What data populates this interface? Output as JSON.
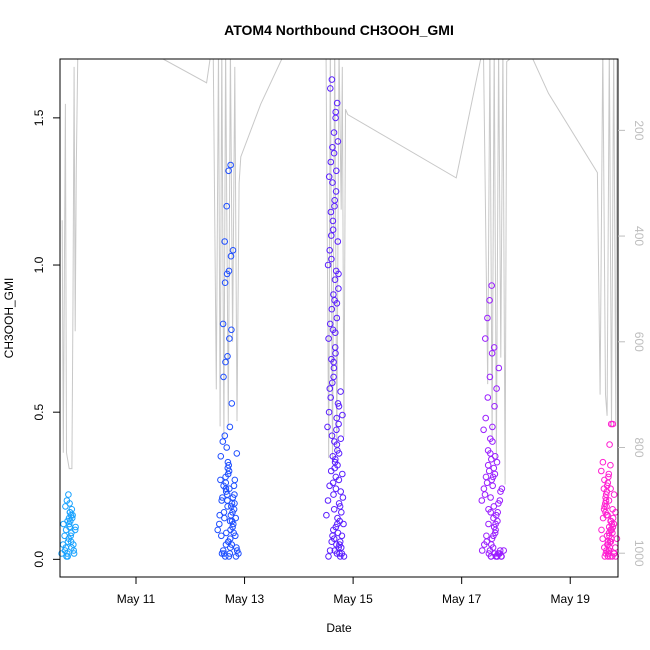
{
  "chart_data": {
    "type": "scatter",
    "title": "ATOM4 Northbound CH3OOH_GMI",
    "xlabel": "Date",
    "ylabel": "CH3OOH_GMI",
    "x_range_days": [
      9.6,
      19.88
    ],
    "ylim": [
      -0.06,
      1.7
    ],
    "x_ticks": [
      {
        "day": 11,
        "label": "May 11"
      },
      {
        "day": 13,
        "label": "May 13"
      },
      {
        "day": 15,
        "label": "May 15"
      },
      {
        "day": 17,
        "label": "May 17"
      },
      {
        "day": 19,
        "label": "May 19"
      }
    ],
    "y_ticks": [
      {
        "value": 0.0,
        "label": "0.0"
      },
      {
        "value": 0.5,
        "label": "0.5"
      },
      {
        "value": 1.0,
        "label": "1.0"
      },
      {
        "value": 1.5,
        "label": "1.5"
      }
    ],
    "right_axis": {
      "range": [
        1045,
        65
      ],
      "reversed": true,
      "ticks": [
        {
          "value": 200,
          "label": "200"
        },
        {
          "value": 400,
          "label": "400"
        },
        {
          "value": 600,
          "label": "600"
        },
        {
          "value": 800,
          "label": "800"
        },
        {
          "value": 1000,
          "label": "1000"
        }
      ],
      "color": "#bdbdbd"
    },
    "grid": false,
    "point_style": "open circles",
    "series": [
      {
        "color": "#1aa3ff",
        "x_range": [
          9.63,
          9.92
        ],
        "y_points": [
          0.02,
          0.05,
          0.08,
          0.1,
          0.13,
          0.14,
          0.12,
          0.03,
          0.01,
          0.06,
          0.11,
          0.15,
          0.18,
          0.2,
          0.22,
          0.16,
          0.09,
          0.04,
          0.02,
          0.07,
          0.13,
          0.17,
          0.05,
          0.01,
          0.12,
          0.08,
          0.14,
          0.03,
          0.1,
          0.19,
          0.06,
          0.15,
          0.02,
          0.11,
          0.16,
          0.04
        ]
      },
      {
        "color": "#1f4fff",
        "x_range": [
          12.5,
          12.92
        ],
        "y_points": [
          0.02,
          0.05,
          0.1,
          0.15,
          0.2,
          0.25,
          0.28,
          0.18,
          0.12,
          0.08,
          0.03,
          0.01,
          0.22,
          0.3,
          0.35,
          0.4,
          0.42,
          0.38,
          0.32,
          0.27,
          0.21,
          0.14,
          0.09,
          0.06,
          0.04,
          0.02,
          0.16,
          0.24,
          0.33,
          0.45,
          0.53,
          0.62,
          0.67,
          0.69,
          0.75,
          0.78,
          0.8,
          0.94,
          0.97,
          0.98,
          1.03,
          1.05,
          1.08,
          1.2,
          1.32,
          1.34,
          0.11,
          0.19,
          0.23,
          0.29,
          0.07,
          0.13,
          0.17,
          0.26,
          0.31,
          0.02,
          0.05,
          0.09,
          0.14,
          0.2,
          0.24,
          0.18,
          0.12,
          0.08,
          0.03,
          0.01,
          0.15,
          0.21,
          0.27,
          0.36,
          0.06,
          0.1,
          0.16,
          0.22,
          0.04,
          0.02,
          0.13,
          0.19,
          0.25,
          0.01
        ]
      },
      {
        "color": "#5a1fff",
        "x_range": [
          14.5,
          14.85
        ],
        "y_points": [
          0.01,
          0.03,
          0.06,
          0.1,
          0.15,
          0.2,
          0.25,
          0.3,
          0.35,
          0.4,
          0.45,
          0.5,
          0.55,
          0.6,
          0.65,
          0.7,
          0.75,
          0.8,
          0.85,
          0.9,
          0.95,
          1.0,
          1.05,
          1.1,
          1.15,
          1.2,
          1.25,
          1.3,
          1.35,
          1.4,
          1.45,
          1.5,
          1.55,
          1.6,
          1.63,
          0.22,
          0.33,
          0.48,
          0.58,
          0.68,
          0.78,
          0.88,
          0.98,
          1.08,
          1.18,
          1.28,
          1.38,
          1.52,
          0.12,
          0.27,
          0.42,
          0.62,
          0.72,
          0.82,
          0.92,
          1.02,
          1.12,
          1.22,
          1.32,
          1.42,
          0.05,
          0.08,
          0.17,
          0.28,
          0.37,
          0.52,
          0.57,
          0.67,
          0.77,
          0.87,
          0.97,
          0.18,
          0.26,
          0.31,
          0.44,
          0.53,
          0.02,
          0.04,
          0.07,
          0.11,
          0.14,
          0.19,
          0.23,
          0.29,
          0.34,
          0.39,
          0.46,
          0.01,
          0.02,
          0.03,
          0.05,
          0.09,
          0.13,
          0.16,
          0.21,
          0.24,
          0.32,
          0.36,
          0.41,
          0.49,
          0.01,
          0.02,
          0.04,
          0.06,
          0.08,
          0.12
        ]
      },
      {
        "color": "#9a1fff",
        "x_range": [
          17.35,
          17.8
        ],
        "y_points": [
          0.01,
          0.03,
          0.05,
          0.08,
          0.12,
          0.16,
          0.2,
          0.24,
          0.28,
          0.32,
          0.36,
          0.4,
          0.44,
          0.48,
          0.55,
          0.62,
          0.7,
          0.72,
          0.75,
          0.82,
          0.88,
          0.93,
          0.18,
          0.22,
          0.26,
          0.3,
          0.34,
          0.14,
          0.1,
          0.06,
          0.02,
          0.01,
          0.04,
          0.09,
          0.13,
          0.17,
          0.21,
          0.25,
          0.29,
          0.33,
          0.37,
          0.41,
          0.45,
          0.52,
          0.58,
          0.65,
          0.03,
          0.07,
          0.11,
          0.15,
          0.19,
          0.23,
          0.27,
          0.31,
          0.01,
          0.02,
          0.03,
          0.05,
          0.08,
          0.12,
          0.16,
          0.2,
          0.24,
          0.28,
          0.35,
          0.01,
          0.02,
          0.01,
          0.03,
          0.02,
          0.01,
          0.02,
          0.01
        ]
      },
      {
        "color": "#ff1fd1",
        "x_range": [
          19.55,
          19.88
        ],
        "y_points": [
          0.01,
          0.03,
          0.06,
          0.1,
          0.14,
          0.18,
          0.22,
          0.26,
          0.3,
          0.33,
          0.27,
          0.2,
          0.15,
          0.11,
          0.07,
          0.04,
          0.02,
          0.05,
          0.09,
          0.13,
          0.17,
          0.21,
          0.25,
          0.29,
          0.32,
          0.24,
          0.16,
          0.08,
          0.03,
          0.01,
          0.12,
          0.19,
          0.23,
          0.28,
          0.06,
          0.1,
          0.14,
          0.18,
          0.02,
          0.04,
          0.07,
          0.11,
          0.15,
          0.01,
          0.39,
          0.46,
          0.46,
          0.02,
          0.05,
          0.08,
          0.13,
          0.17,
          0.22,
          0.01,
          0.03,
          0.06,
          0.09,
          0.12,
          0.16,
          0.2,
          0.24,
          0.01,
          0.02,
          0.04,
          0.07,
          0.1
        ]
      }
    ],
    "profile_line": {
      "color": "#c8c8c8",
      "description_free": true,
      "points": [
        [
          9.64,
          370
        ],
        [
          9.66,
          810
        ],
        [
          9.7,
          150
        ],
        [
          9.72,
          810
        ],
        [
          9.77,
          840
        ],
        [
          9.82,
          840
        ],
        [
          9.84,
          520
        ],
        [
          9.86,
          80
        ],
        [
          9.88,
          580
        ],
        [
          9.9,
          270
        ],
        [
          9.93,
          40
        ],
        [
          10.2,
          40
        ],
        [
          11.5,
          65
        ],
        [
          12.3,
          110
        ],
        [
          12.42,
          10
        ],
        [
          12.48,
          690
        ],
        [
          12.52,
          40
        ],
        [
          12.55,
          760
        ],
        [
          12.58,
          40
        ],
        [
          12.62,
          780
        ],
        [
          12.65,
          40
        ],
        [
          12.7,
          760
        ],
        [
          12.74,
          40
        ],
        [
          12.78,
          600
        ],
        [
          12.82,
          80
        ],
        [
          12.86,
          750
        ],
        [
          12.9,
          300
        ],
        [
          12.93,
          250
        ],
        [
          13.3,
          150
        ],
        [
          13.8,
          40
        ],
        [
          14.5,
          40
        ],
        [
          14.55,
          820
        ],
        [
          14.58,
          40
        ],
        [
          14.62,
          830
        ],
        [
          14.66,
          40
        ],
        [
          14.7,
          810
        ],
        [
          14.74,
          40
        ],
        [
          14.78,
          350
        ],
        [
          14.8,
          80
        ],
        [
          14.83,
          780
        ],
        [
          14.86,
          160
        ],
        [
          14.9,
          170
        ],
        [
          16.9,
          290
        ],
        [
          17.4,
          40
        ],
        [
          17.48,
          680
        ],
        [
          17.52,
          40
        ],
        [
          17.56,
          780
        ],
        [
          17.6,
          40
        ],
        [
          17.64,
          820
        ],
        [
          17.68,
          40
        ],
        [
          17.72,
          630
        ],
        [
          17.76,
          40
        ],
        [
          17.8,
          870
        ],
        [
          17.83,
          70
        ],
        [
          18.2,
          40
        ],
        [
          18.6,
          130
        ],
        [
          19.5,
          280
        ],
        [
          19.55,
          700
        ],
        [
          19.6,
          40
        ],
        [
          19.65,
          700
        ],
        [
          19.68,
          740
        ],
        [
          19.72,
          40
        ],
        [
          19.76,
          760
        ],
        [
          19.8,
          40
        ],
        [
          19.84,
          760
        ],
        [
          19.86,
          40
        ],
        [
          19.88,
          760
        ]
      ]
    }
  }
}
